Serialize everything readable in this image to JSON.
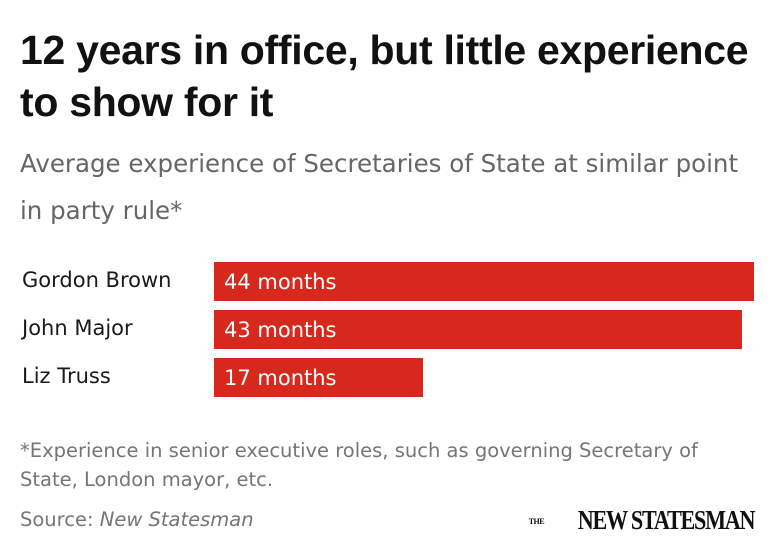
{
  "header": {
    "title": "12 years in office, but little experience to show for it",
    "subtitle": "Average experience of Secretaries of State at similar point in party rule*"
  },
  "chart_data": {
    "type": "bar",
    "orientation": "horizontal",
    "title": "12 years in office, but little experience to show for it",
    "subtitle": "Average experience of Secretaries of State at similar point in party rule*",
    "categories": [
      "Gordon Brown",
      "John Major",
      "Liz Truss"
    ],
    "values": [
      44,
      43,
      17
    ],
    "value_labels": [
      "44 months",
      "43 months",
      "17 months"
    ],
    "unit": "months",
    "xlim": [
      0,
      44
    ],
    "bar_color": "#d7281e",
    "grid": false,
    "legend": "none"
  },
  "footer": {
    "footnote": "*Experience in senior executive roles, such as governing Secretary of State, London mayor, etc.",
    "source_prefix": "Source: ",
    "source_name": "New Statesman",
    "logo_the": "The",
    "logo_main": "NEW STATESMAN"
  }
}
